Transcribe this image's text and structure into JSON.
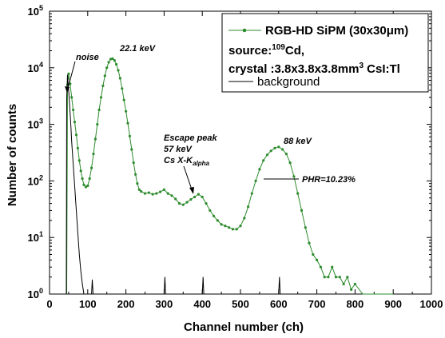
{
  "chart_data": {
    "type": "line",
    "xlabel": "Channel number (ch)",
    "ylabel": "Number of counts",
    "xlim": [
      0,
      1000
    ],
    "ylim": [
      1,
      100000
    ],
    "y_scale": "log",
    "x_ticks": [
      "0",
      "100",
      "200",
      "300",
      "400",
      "500",
      "600",
      "700",
      "800",
      "900",
      "1000"
    ],
    "y_ticks": [
      {
        "base": "10",
        "exp": "0"
      },
      {
        "base": "10",
        "exp": "1"
      },
      {
        "base": "10",
        "exp": "2"
      },
      {
        "base": "10",
        "exp": "3"
      },
      {
        "base": "10",
        "exp": "4"
      },
      {
        "base": "10",
        "exp": "5"
      }
    ],
    "legend": {
      "placement": "top-right",
      "series_label": "RGB-HD SiPM (30x30",
      "series_label_mu": "μ",
      "series_label_end": "m)",
      "source_prefix": "source:",
      "source_sup": "109",
      "source_suffix": "Cd,",
      "crystal_prefix": "crystal :3.8x3.8x3.8mm",
      "crystal_sup": "3",
      "crystal_suffix": " CsI:Tl",
      "background_label": "background"
    },
    "annotations": {
      "noise": "noise",
      "peak1": "22.1 keV",
      "escape1": "Escape peak",
      "escape2": "57 keV",
      "escape3_prefix": "Cs X-K",
      "escape3_sub": "alpha",
      "peak2": "88 keV",
      "phr": "PHR=10.23%"
    },
    "series": [
      {
        "name": "RGB-HD SiPM (30x30μm)",
        "color": "#2e8b2e",
        "marker": "circle",
        "points": [
          [
            45,
            1
          ],
          [
            47,
            5000
          ],
          [
            50,
            7800
          ],
          [
            54,
            5200
          ],
          [
            58,
            3000
          ],
          [
            62,
            1800
          ],
          [
            66,
            1100
          ],
          [
            70,
            650
          ],
          [
            74,
            380
          ],
          [
            78,
            230
          ],
          [
            82,
            150
          ],
          [
            86,
            110
          ],
          [
            90,
            85
          ],
          [
            95,
            78
          ],
          [
            100,
            82
          ],
          [
            105,
            110
          ],
          [
            110,
            170
          ],
          [
            115,
            300
          ],
          [
            120,
            550
          ],
          [
            125,
            1000
          ],
          [
            130,
            1800
          ],
          [
            135,
            3000
          ],
          [
            140,
            4800
          ],
          [
            145,
            7200
          ],
          [
            150,
            10000
          ],
          [
            155,
            12500
          ],
          [
            160,
            14200
          ],
          [
            165,
            14500
          ],
          [
            170,
            13500
          ],
          [
            175,
            11500
          ],
          [
            180,
            9000
          ],
          [
            185,
            6500
          ],
          [
            190,
            4300
          ],
          [
            195,
            2700
          ],
          [
            200,
            1700
          ],
          [
            205,
            1050
          ],
          [
            210,
            620
          ],
          [
            215,
            360
          ],
          [
            220,
            210
          ],
          [
            225,
            130
          ],
          [
            230,
            90
          ],
          [
            235,
            70
          ],
          [
            240,
            65
          ],
          [
            250,
            60
          ],
          [
            260,
            62
          ],
          [
            270,
            58
          ],
          [
            280,
            60
          ],
          [
            290,
            64
          ],
          [
            300,
            70
          ],
          [
            310,
            60
          ],
          [
            320,
            55
          ],
          [
            330,
            48
          ],
          [
            340,
            40
          ],
          [
            350,
            38
          ],
          [
            360,
            42
          ],
          [
            370,
            47
          ],
          [
            380,
            52
          ],
          [
            390,
            58
          ],
          [
            400,
            52
          ],
          [
            410,
            40
          ],
          [
            420,
            30
          ],
          [
            430,
            24
          ],
          [
            440,
            20
          ],
          [
            450,
            17
          ],
          [
            460,
            16
          ],
          [
            470,
            15
          ],
          [
            480,
            14
          ],
          [
            490,
            14
          ],
          [
            500,
            16
          ],
          [
            510,
            22
          ],
          [
            520,
            35
          ],
          [
            530,
            60
          ],
          [
            540,
            100
          ],
          [
            550,
            160
          ],
          [
            560,
            230
          ],
          [
            570,
            290
          ],
          [
            580,
            340
          ],
          [
            590,
            380
          ],
          [
            600,
            400
          ],
          [
            610,
            360
          ],
          [
            620,
            300
          ],
          [
            630,
            210
          ],
          [
            640,
            120
          ],
          [
            650,
            60
          ],
          [
            660,
            30
          ],
          [
            670,
            15
          ],
          [
            680,
            8
          ],
          [
            690,
            5
          ],
          [
            700,
            4
          ],
          [
            710,
            3
          ],
          [
            720,
            2
          ],
          [
            730,
            2
          ],
          [
            740,
            3
          ],
          [
            750,
            2
          ],
          [
            760,
            2
          ],
          [
            770,
            1.5
          ],
          [
            780,
            2
          ],
          [
            790,
            1.2
          ],
          [
            800,
            1.5
          ],
          [
            820,
            1
          ],
          [
            850,
            1
          ],
          [
            900,
            1
          ]
        ]
      },
      {
        "name": "background",
        "color": "#000000",
        "marker": "none",
        "points": [
          [
            44,
            1
          ],
          [
            45,
            3000
          ],
          [
            47,
            7500
          ],
          [
            49,
            5000
          ],
          [
            52,
            2500
          ],
          [
            55,
            1200
          ],
          [
            58,
            500
          ],
          [
            62,
            200
          ],
          [
            66,
            80
          ],
          [
            70,
            30
          ],
          [
            74,
            12
          ],
          [
            78,
            5
          ],
          [
            82,
            2.5
          ],
          [
            86,
            1.5
          ],
          [
            90,
            1
          ],
          [
            110,
            1
          ],
          [
            112,
            1.8
          ],
          [
            114,
            1
          ],
          [
            300,
            1
          ],
          [
            302,
            2
          ],
          [
            304,
            1
          ],
          [
            400,
            1
          ],
          [
            402,
            2
          ],
          [
            404,
            1
          ],
          [
            600,
            1
          ],
          [
            602,
            2
          ],
          [
            604,
            1
          ],
          [
            800,
            1
          ]
        ]
      }
    ]
  }
}
